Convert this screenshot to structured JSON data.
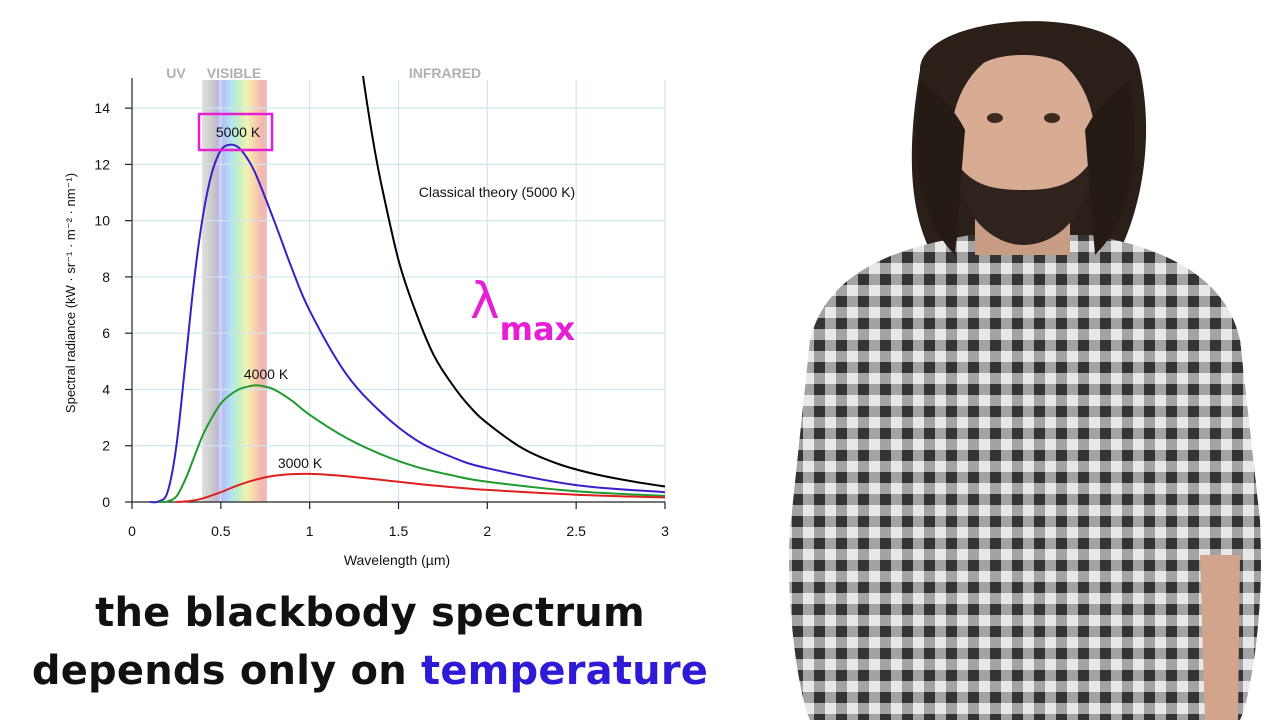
{
  "chart_data": {
    "type": "line",
    "xlabel": "Wavelength (µm)",
    "ylabel": "Spectral radiance (kW · sr⁻¹ · m⁻² · nm⁻¹)",
    "xlim": [
      0,
      3
    ],
    "ylim": [
      0,
      15
    ],
    "x_ticks": [
      "0",
      "0.5",
      "1",
      "1.5",
      "2",
      "2.5",
      "3"
    ],
    "y_ticks": [
      "0",
      "2",
      "4",
      "6",
      "8",
      "10",
      "12",
      "14"
    ],
    "grid": true,
    "regions": [
      {
        "label": "UV",
        "x_range": [
          0,
          0.39
        ]
      },
      {
        "label": "VISIBLE",
        "x_range": [
          0.39,
          0.75
        ]
      },
      {
        "label": "INFRARED",
        "x_range": [
          0.75,
          3
        ]
      }
    ],
    "series": [
      {
        "name": "5000 K",
        "color": "#3a1fc9",
        "x": [
          0.1,
          0.15,
          0.2,
          0.25,
          0.3,
          0.35,
          0.4,
          0.45,
          0.5,
          0.55,
          0.6,
          0.65,
          0.7,
          0.8,
          0.9,
          1.0,
          1.2,
          1.4,
          1.6,
          1.8,
          2.0,
          2.5,
          3.0
        ],
        "y": [
          0,
          0.02,
          0.35,
          2.0,
          4.9,
          7.9,
          10.2,
          11.7,
          12.5,
          12.7,
          12.6,
          12.2,
          11.6,
          10.0,
          8.3,
          6.8,
          4.6,
          3.2,
          2.2,
          1.6,
          1.2,
          0.6,
          0.35
        ]
      },
      {
        "name": "4000 K",
        "color": "#1e9a2e",
        "x": [
          0.15,
          0.2,
          0.25,
          0.3,
          0.35,
          0.4,
          0.45,
          0.5,
          0.55,
          0.6,
          0.65,
          0.7,
          0.75,
          0.8,
          0.9,
          1.0,
          1.2,
          1.4,
          1.6,
          1.8,
          2.0,
          2.5,
          3.0
        ],
        "y": [
          0,
          0.02,
          0.2,
          0.8,
          1.6,
          2.4,
          3.0,
          3.5,
          3.8,
          4.0,
          4.1,
          4.15,
          4.1,
          4.0,
          3.6,
          3.1,
          2.3,
          1.7,
          1.25,
          0.95,
          0.72,
          0.38,
          0.22
        ]
      },
      {
        "name": "3000 K",
        "color": "#e02020",
        "x": [
          0.25,
          0.3,
          0.35,
          0.4,
          0.5,
          0.6,
          0.7,
          0.8,
          0.9,
          1.0,
          1.1,
          1.2,
          1.4,
          1.6,
          1.8,
          2.0,
          2.5,
          3.0
        ],
        "y": [
          0,
          0.02,
          0.06,
          0.13,
          0.35,
          0.6,
          0.8,
          0.93,
          0.99,
          1.0,
          0.97,
          0.92,
          0.79,
          0.65,
          0.53,
          0.43,
          0.26,
          0.16
        ]
      },
      {
        "name": "Classical theory (5000 K)",
        "color": "#000000",
        "x": [
          1.3,
          1.35,
          1.4,
          1.5,
          1.6,
          1.7,
          1.8,
          1.9,
          2.0,
          2.2,
          2.4,
          2.6,
          2.8,
          3.0
        ],
        "y": [
          15.2,
          13.1,
          11.4,
          8.6,
          6.7,
          5.2,
          4.2,
          3.4,
          2.8,
          1.9,
          1.35,
          1.0,
          0.75,
          0.55
        ]
      }
    ],
    "annotations": [
      {
        "text": "5000 K",
        "boxed": true,
        "box_color": "#e61ed6"
      },
      {
        "text": "4000 K"
      },
      {
        "text": "3000 K"
      },
      {
        "text": "Classical theory (5000 K)"
      }
    ]
  },
  "overlay": {
    "lambda_symbol": "λ",
    "lambda_subscript": "max",
    "color": "#e61ed6"
  },
  "caption": {
    "line1": "the blackbody spectrum",
    "line2_prefix": "depends only on ",
    "line2_highlight": "temperature",
    "highlight_color": "#2f1bd6"
  }
}
